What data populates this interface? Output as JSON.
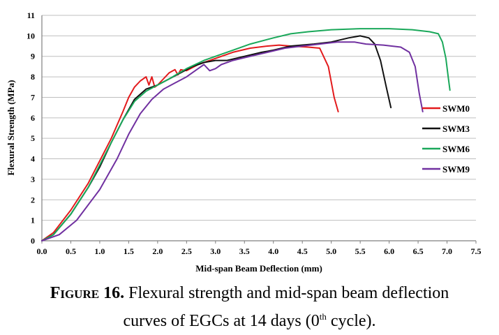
{
  "chart_data": {
    "type": "line",
    "xlabel": "Mid-span Beam Deflection (mm)",
    "ylabel": "Flexural Strength (MPa)",
    "xlim": [
      0,
      7.5
    ],
    "ylim": [
      0,
      11
    ],
    "x_ticks": [
      "0.0",
      "0.5",
      "1.0",
      "1.5",
      "2.0",
      "2.5",
      "3.0",
      "3.5",
      "4.0",
      "4.5",
      "5.0",
      "5.5",
      "6.0",
      "6.5",
      "7.0",
      "7.5"
    ],
    "y_ticks": [
      "0",
      "1",
      "2",
      "3",
      "4",
      "5",
      "6",
      "7",
      "8",
      "9",
      "10",
      "11"
    ],
    "grid": "horizontal",
    "legend_position": "right",
    "series": [
      {
        "name": "SWM0",
        "color": "#e31a1c",
        "x": [
          0,
          0.2,
          0.5,
          0.8,
          1.0,
          1.2,
          1.4,
          1.5,
          1.6,
          1.7,
          1.8,
          1.85,
          1.9,
          1.95,
          2.0,
          2.1,
          2.2,
          2.3,
          2.35,
          2.4,
          2.5,
          2.7,
          3.0,
          3.3,
          3.6,
          3.9,
          4.1,
          4.3,
          4.6,
          4.8,
          4.95,
          5.05,
          5.12
        ],
        "y": [
          0,
          0.4,
          1.5,
          2.8,
          3.9,
          5.0,
          6.3,
          7.0,
          7.5,
          7.8,
          8.0,
          7.6,
          8.0,
          7.5,
          7.6,
          7.9,
          8.2,
          8.35,
          8.1,
          8.35,
          8.3,
          8.6,
          8.9,
          9.2,
          9.4,
          9.5,
          9.55,
          9.5,
          9.45,
          9.4,
          8.5,
          7.0,
          6.3
        ]
      },
      {
        "name": "SWM3",
        "color": "#111111",
        "x": [
          0,
          0.2,
          0.5,
          0.8,
          1.0,
          1.2,
          1.4,
          1.6,
          1.8,
          2.0,
          2.2,
          2.4,
          2.6,
          2.8,
          3.0,
          3.2,
          3.5,
          3.8,
          4.0,
          4.3,
          4.7,
          5.0,
          5.3,
          5.5,
          5.65,
          5.75,
          5.85,
          5.95,
          6.03
        ],
        "y": [
          0,
          0.3,
          1.3,
          2.6,
          3.6,
          4.8,
          5.9,
          6.9,
          7.4,
          7.6,
          7.9,
          8.2,
          8.5,
          8.7,
          8.8,
          8.8,
          9.0,
          9.2,
          9.3,
          9.5,
          9.6,
          9.7,
          9.9,
          10.0,
          9.9,
          9.6,
          8.8,
          7.5,
          6.5
        ]
      },
      {
        "name": "SWM6",
        "color": "#1aa85a",
        "x": [
          0,
          0.2,
          0.5,
          0.8,
          1.0,
          1.2,
          1.4,
          1.6,
          1.8,
          2.0,
          2.2,
          2.5,
          2.8,
          3.0,
          3.3,
          3.6,
          4.0,
          4.3,
          4.6,
          5.0,
          5.5,
          6.0,
          6.4,
          6.7,
          6.85,
          6.92,
          6.98,
          7.02,
          7.05
        ],
        "y": [
          0,
          0.3,
          1.3,
          2.6,
          3.7,
          4.8,
          5.9,
          6.8,
          7.3,
          7.6,
          7.9,
          8.4,
          8.8,
          9.0,
          9.3,
          9.6,
          9.9,
          10.1,
          10.2,
          10.3,
          10.35,
          10.35,
          10.3,
          10.2,
          10.1,
          9.7,
          8.9,
          8.0,
          7.35
        ]
      },
      {
        "name": "SWM9",
        "color": "#7030a0",
        "x": [
          0,
          0.3,
          0.6,
          1.0,
          1.3,
          1.5,
          1.7,
          1.9,
          2.1,
          2.3,
          2.5,
          2.7,
          2.8,
          2.9,
          3.0,
          3.1,
          3.3,
          3.6,
          3.9,
          4.2,
          4.5,
          4.8,
          5.1,
          5.4,
          5.6,
          5.9,
          6.2,
          6.35,
          6.45,
          6.52,
          6.58
        ],
        "y": [
          0,
          0.3,
          1.0,
          2.5,
          4.0,
          5.2,
          6.2,
          6.9,
          7.4,
          7.7,
          8.0,
          8.4,
          8.6,
          8.3,
          8.4,
          8.6,
          8.8,
          9.0,
          9.2,
          9.4,
          9.5,
          9.6,
          9.7,
          9.7,
          9.6,
          9.55,
          9.45,
          9.2,
          8.5,
          7.2,
          6.3
        ]
      }
    ]
  },
  "caption": {
    "label": "Figure 16.",
    "text_line1": " Flexural strength and mid-span beam deflection",
    "text_line2_pre": "curves of EGCs at 14 days (0",
    "superscript": "th",
    "text_line2_post": " cycle)."
  }
}
